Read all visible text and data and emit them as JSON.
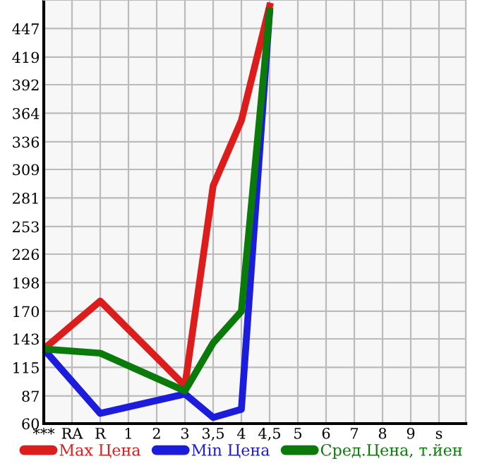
{
  "chart_data": {
    "type": "line",
    "categories": [
      "***",
      "RA",
      "R",
      "1",
      "2",
      "3",
      "3,5",
      "4",
      "4,5",
      "5",
      "6",
      "7",
      "8",
      "9",
      "s"
    ],
    "series": [
      {
        "name": "Max Цена",
        "color": "#dd1c1c",
        "values": [
          133,
          null,
          180,
          null,
          null,
          97,
          293,
          357,
          469,
          null,
          null,
          null,
          null,
          null,
          null
        ]
      },
      {
        "name": "Min Цена",
        "color": "#1c1cdd",
        "values": [
          133,
          null,
          70,
          null,
          null,
          89,
          66,
          74,
          464,
          null,
          null,
          null,
          null,
          null,
          null
        ]
      },
      {
        "name": "Сред.Цена, т.йен",
        "color": "#0a7a0a",
        "values": [
          133,
          null,
          129,
          null,
          null,
          92,
          139,
          170,
          464,
          null,
          null,
          null,
          null,
          null,
          null
        ]
      }
    ],
    "ylim": [
      60,
      475
    ],
    "yticks": [
      60,
      87,
      115,
      143,
      170,
      198,
      226,
      253,
      281,
      309,
      336,
      364,
      392,
      419,
      447
    ],
    "grid": true,
    "legend": "bottom",
    "marker": "none",
    "line_style": "solid"
  }
}
